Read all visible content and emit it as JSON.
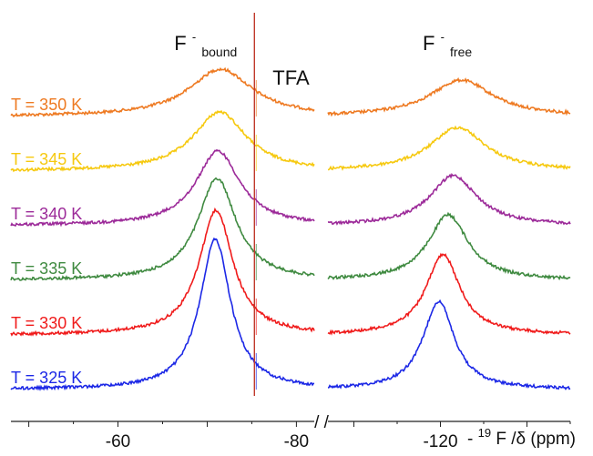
{
  "chart_data": {
    "type": "line",
    "x_axis": {
      "label_prefix": "-",
      "label_sup": "19",
      "label_main": "F /δ (ppm)",
      "reversed": true,
      "break_marker": "/ /",
      "segments": [
        {
          "xlim": [
            -48,
            -82
          ],
          "ticks": [
            {
              "value": -60,
              "label": "-60"
            },
            {
              "value": -80,
              "label": "-80"
            }
          ]
        },
        {
          "xlim": [
            -107,
            -135
          ],
          "ticks": [
            {
              "value": -120,
              "label": "-120"
            }
          ]
        }
      ]
    },
    "annotations": {
      "bound": {
        "main": "F",
        "sup": "-",
        "sub": "bound",
        "x": -71
      },
      "free": {
        "main": "F",
        "sup": "-",
        "sub": "free",
        "x": -121
      },
      "tfa": {
        "text": "TFA",
        "x": -75.5
      }
    },
    "series": [
      {
        "name": "T = 350 K",
        "color": "#ee7a22",
        "bound": {
          "center": -71.5,
          "width": 4.3,
          "height": 52
        },
        "free": {
          "center": -122.4,
          "width": 4.4,
          "height": 40
        }
      },
      {
        "name": "T = 345 K",
        "color": "#f6c910",
        "bound": {
          "center": -71.4,
          "width": 3.6,
          "height": 65
        },
        "free": {
          "center": -122.0,
          "width": 3.9,
          "height": 48
        }
      },
      {
        "name": "T = 340 K",
        "color": "#9c2a99",
        "bound": {
          "center": -71.2,
          "width": 3.0,
          "height": 82
        },
        "free": {
          "center": -121.5,
          "width": 3.3,
          "height": 55
        }
      },
      {
        "name": "T = 335 K",
        "color": "#3f8a40",
        "bound": {
          "center": -71.1,
          "width": 2.6,
          "height": 112
        },
        "free": {
          "center": -120.9,
          "width": 2.8,
          "height": 72
        }
      },
      {
        "name": "T = 330 K",
        "color": "#f01b1b",
        "bound": {
          "center": -71.0,
          "width": 2.3,
          "height": 137
        },
        "free": {
          "center": -120.3,
          "width": 2.4,
          "height": 88
        }
      },
      {
        "name": "T = 325 K",
        "color": "#1c28e6",
        "bound": {
          "center": -70.9,
          "width": 2.1,
          "height": 165
        },
        "free": {
          "center": -119.8,
          "width": 2.2,
          "height": 97
        }
      }
    ]
  }
}
